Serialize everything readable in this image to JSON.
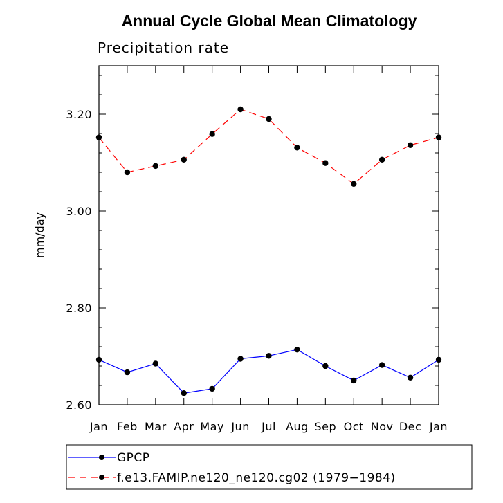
{
  "chart_data": {
    "type": "line",
    "title": "Annual Cycle Global Mean Climatology",
    "subtitle": "Precipitation rate",
    "xlabel": "",
    "ylabel": "mm/day",
    "ylim": [
      2.6,
      3.3
    ],
    "yticks": [
      2.6,
      2.8,
      3.0,
      3.2
    ],
    "ytick_labels": [
      "2.60",
      "2.80",
      "3.00",
      "3.20"
    ],
    "categories": [
      "Jan",
      "Feb",
      "Mar",
      "Apr",
      "May",
      "Jun",
      "Jul",
      "Aug",
      "Sep",
      "Oct",
      "Nov",
      "Dec",
      "Jan"
    ],
    "series": [
      {
        "name": "GPCP",
        "color": "#0000ff",
        "dash": "solid",
        "values": [
          2.693,
          2.667,
          2.685,
          2.624,
          2.633,
          2.695,
          2.701,
          2.714,
          2.68,
          2.65,
          2.682,
          2.656,
          2.693
        ]
      },
      {
        "name": "f.e13.FAMIP.ne120_ne120.cg02 (1979-1984)",
        "color": "#ff0000",
        "dash": "dashed",
        "values": [
          3.152,
          3.08,
          3.093,
          3.106,
          3.159,
          3.21,
          3.19,
          3.131,
          3.099,
          3.056,
          3.106,
          3.136,
          3.152
        ]
      }
    ],
    "legend": {
      "position": "bottom-left",
      "entries": [
        "GPCP",
        "f.e13.FAMIP.ne120_ne120.cg02 (1979−1984)"
      ]
    }
  }
}
